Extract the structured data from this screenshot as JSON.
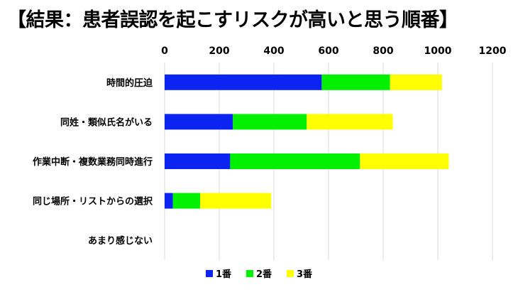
{
  "chart_data": {
    "type": "bar",
    "orientation": "horizontal",
    "stacked": true,
    "title": "【結果：患者誤認を起こすリスクが高いと思う順番】",
    "categories": [
      "時間的圧迫",
      "同姓・類似氏名がいる",
      "作業中断・複数業務同時進行",
      "同じ場所・リストからの選択",
      "あまり感じない"
    ],
    "series": [
      {
        "name": "1番",
        "color": "#0b24f2",
        "values": [
          575,
          250,
          240,
          30,
          0
        ]
      },
      {
        "name": "2番",
        "color": "#00f000",
        "values": [
          250,
          270,
          475,
          100,
          0
        ]
      },
      {
        "name": "3番",
        "color": "#ffff00",
        "values": [
          190,
          315,
          325,
          260,
          0
        ]
      }
    ],
    "xlim": [
      0,
      1200
    ],
    "xticks": [
      "0",
      "200",
      "400",
      "600",
      "800",
      "1000",
      "1200"
    ],
    "x_axis_position": "top",
    "grid": true,
    "legend_position": "bottom",
    "first_bar_color": "#0b24f2"
  }
}
